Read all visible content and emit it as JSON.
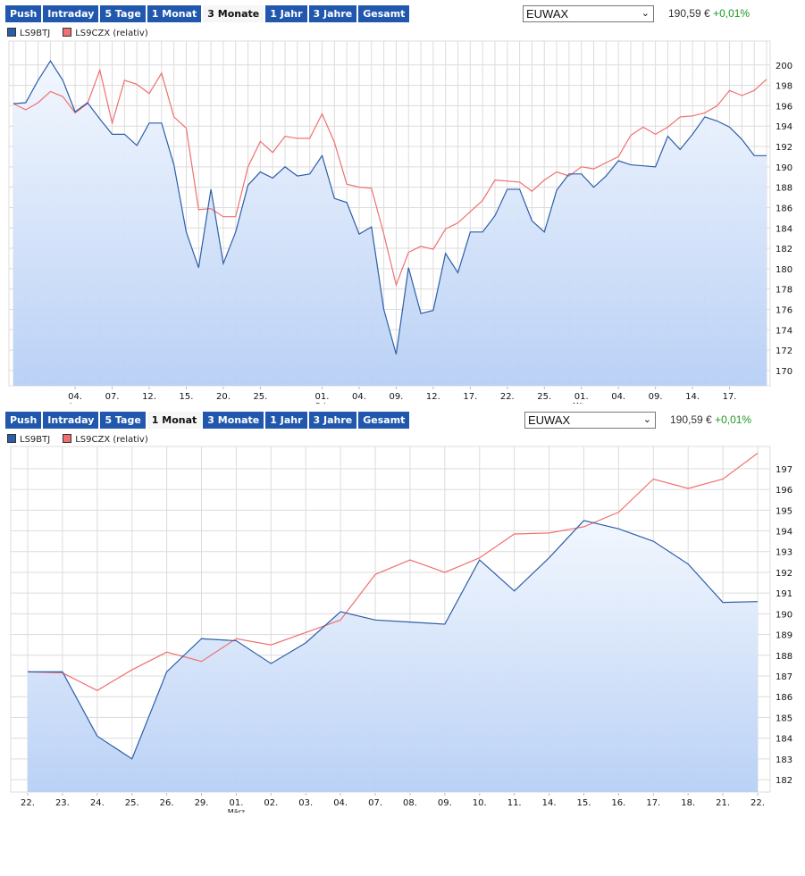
{
  "panels": [
    {
      "toolbar": {
        "buttons": [
          "Push",
          "Intraday",
          "5 Tage",
          "1 Monat",
          "3 Monate",
          "1 Jahr",
          "3 Jahre",
          "Gesamt"
        ],
        "active": "3 Monate"
      },
      "exchange_select": {
        "value": "EUWAX"
      },
      "price": {
        "value": "190,59 €",
        "change": "+0,01%"
      },
      "legend": [
        {
          "label": "LS9BTJ",
          "color": "#2c5ea8"
        },
        {
          "label": "LS9CZX (relativ)",
          "color": "#f07070"
        }
      ]
    },
    {
      "toolbar": {
        "buttons": [
          "Push",
          "Intraday",
          "5 Tage",
          "1 Monat",
          "3 Monate",
          "1 Jahr",
          "3 Jahre",
          "Gesamt"
        ],
        "active": "1 Monat"
      },
      "exchange_select": {
        "value": "EUWAX"
      },
      "price": {
        "value": "190,59 €",
        "change": "+0,01%"
      },
      "legend": [
        {
          "label": "LS9BTJ",
          "color": "#2c5ea8"
        },
        {
          "label": "LS9CZX (relativ)",
          "color": "#f07070"
        }
      ]
    }
  ],
  "chart_data": [
    {
      "type": "line",
      "title": "",
      "ylim": [
        168.5,
        202
      ],
      "yticks": [
        170,
        172,
        174,
        176,
        178,
        180,
        182,
        184,
        186,
        188,
        190,
        192,
        194,
        196,
        198,
        200
      ],
      "grid": true,
      "xticks": [
        {
          "label": "04.",
          "index": 5,
          "month": "Jan"
        },
        {
          "label": "07.",
          "index": 8
        },
        {
          "label": "12.",
          "index": 11
        },
        {
          "label": "15.",
          "index": 14
        },
        {
          "label": "20.",
          "index": 17
        },
        {
          "label": "25.",
          "index": 20
        },
        {
          "label": "01.",
          "index": 25,
          "month": "Feb"
        },
        {
          "label": "04.",
          "index": 28
        },
        {
          "label": "09.",
          "index": 31
        },
        {
          "label": "12.",
          "index": 34
        },
        {
          "label": "17.",
          "index": 37
        },
        {
          "label": "22.",
          "index": 40
        },
        {
          "label": "25.",
          "index": 43
        },
        {
          "label": "01.",
          "index": 46,
          "month": "März"
        },
        {
          "label": "04.",
          "index": 49
        },
        {
          "label": "09.",
          "index": 52
        },
        {
          "label": "14.",
          "index": 55
        },
        {
          "label": "17.",
          "index": 58
        }
      ],
      "series": [
        {
          "name": "LS9BTJ",
          "color": "#2c5ea8",
          "fill": true,
          "values": [
            196.2,
            196.3,
            198.5,
            200.4,
            198.5,
            195.4,
            196.3,
            194.7,
            193.2,
            193.2,
            192.1,
            194.3,
            194.3,
            190.2,
            183.6,
            180.1,
            187.8,
            180.5,
            183.6,
            188.2,
            189.5,
            188.9,
            190.0,
            189.1,
            189.3,
            191.1,
            186.9,
            186.5,
            183.4,
            184.1,
            176.0,
            171.6,
            180.1,
            175.6,
            175.9,
            181.5,
            179.6,
            183.6,
            183.6,
            185.2,
            187.8,
            187.8,
            184.7,
            183.6,
            187.7,
            189.3,
            189.3,
            188.0,
            189.1,
            190.6,
            190.2,
            190.1,
            190.0,
            193.0,
            191.7,
            193.2,
            194.9,
            194.5,
            193.9,
            192.7,
            191.1,
            191.1
          ]
        },
        {
          "name": "LS9CZX (relativ)",
          "color": "#f07070",
          "fill": false,
          "values": [
            196.2,
            195.6,
            196.3,
            197.4,
            196.9,
            195.3,
            196.2,
            199.5,
            194.3,
            198.5,
            198.1,
            197.2,
            199.2,
            194.9,
            193.8,
            185.8,
            185.9,
            185.1,
            185.1,
            190.0,
            192.5,
            191.4,
            193.0,
            192.8,
            192.8,
            195.2,
            192.4,
            188.3,
            188.0,
            187.9,
            183.4,
            178.4,
            181.6,
            182.2,
            181.9,
            183.9,
            184.5,
            185.6,
            186.7,
            188.7,
            188.6,
            188.5,
            187.6,
            188.7,
            189.5,
            189.1,
            190.0,
            189.8,
            190.4,
            191.0,
            193.1,
            193.9,
            193.2,
            193.9,
            194.9,
            195.0,
            195.3,
            196.0,
            197.5,
            197.0,
            197.5,
            198.6
          ]
        }
      ]
    },
    {
      "type": "line",
      "title": "",
      "ylim": [
        181.4,
        197.9
      ],
      "yticks": [
        182,
        183,
        184,
        185,
        186,
        187,
        188,
        189,
        190,
        191,
        192,
        193,
        194,
        195,
        196,
        197
      ],
      "grid": true,
      "categories": [
        "22.",
        "23.",
        "24.",
        "25.",
        "26.",
        "29.",
        "01.",
        "02.",
        "03.",
        "04.",
        "07.",
        "08.",
        "09.",
        "10.",
        "11.",
        "14.",
        "15.",
        "16.",
        "17.",
        "18.",
        "21.",
        "22."
      ],
      "month_labels": [
        {
          "label": "März",
          "index": 6
        }
      ],
      "series": [
        {
          "name": "LS9BTJ",
          "color": "#2c5ea8",
          "fill": true,
          "values": [
            187.2,
            187.2,
            184.1,
            183.0,
            187.2,
            188.8,
            188.7,
            187.6,
            188.6,
            190.1,
            189.7,
            189.6,
            189.5,
            192.6,
            191.1,
            192.7,
            194.5,
            194.1,
            193.5,
            192.4,
            190.55,
            190.59
          ]
        },
        {
          "name": "LS9CZX (relativ)",
          "color": "#f07070",
          "fill": false,
          "values": [
            187.2,
            187.15,
            186.3,
            187.3,
            188.15,
            187.7,
            188.8,
            188.5,
            189.1,
            189.7,
            191.9,
            192.6,
            192.0,
            192.7,
            193.85,
            193.9,
            194.2,
            194.9,
            196.5,
            196.05,
            196.5,
            197.75
          ]
        }
      ]
    }
  ]
}
